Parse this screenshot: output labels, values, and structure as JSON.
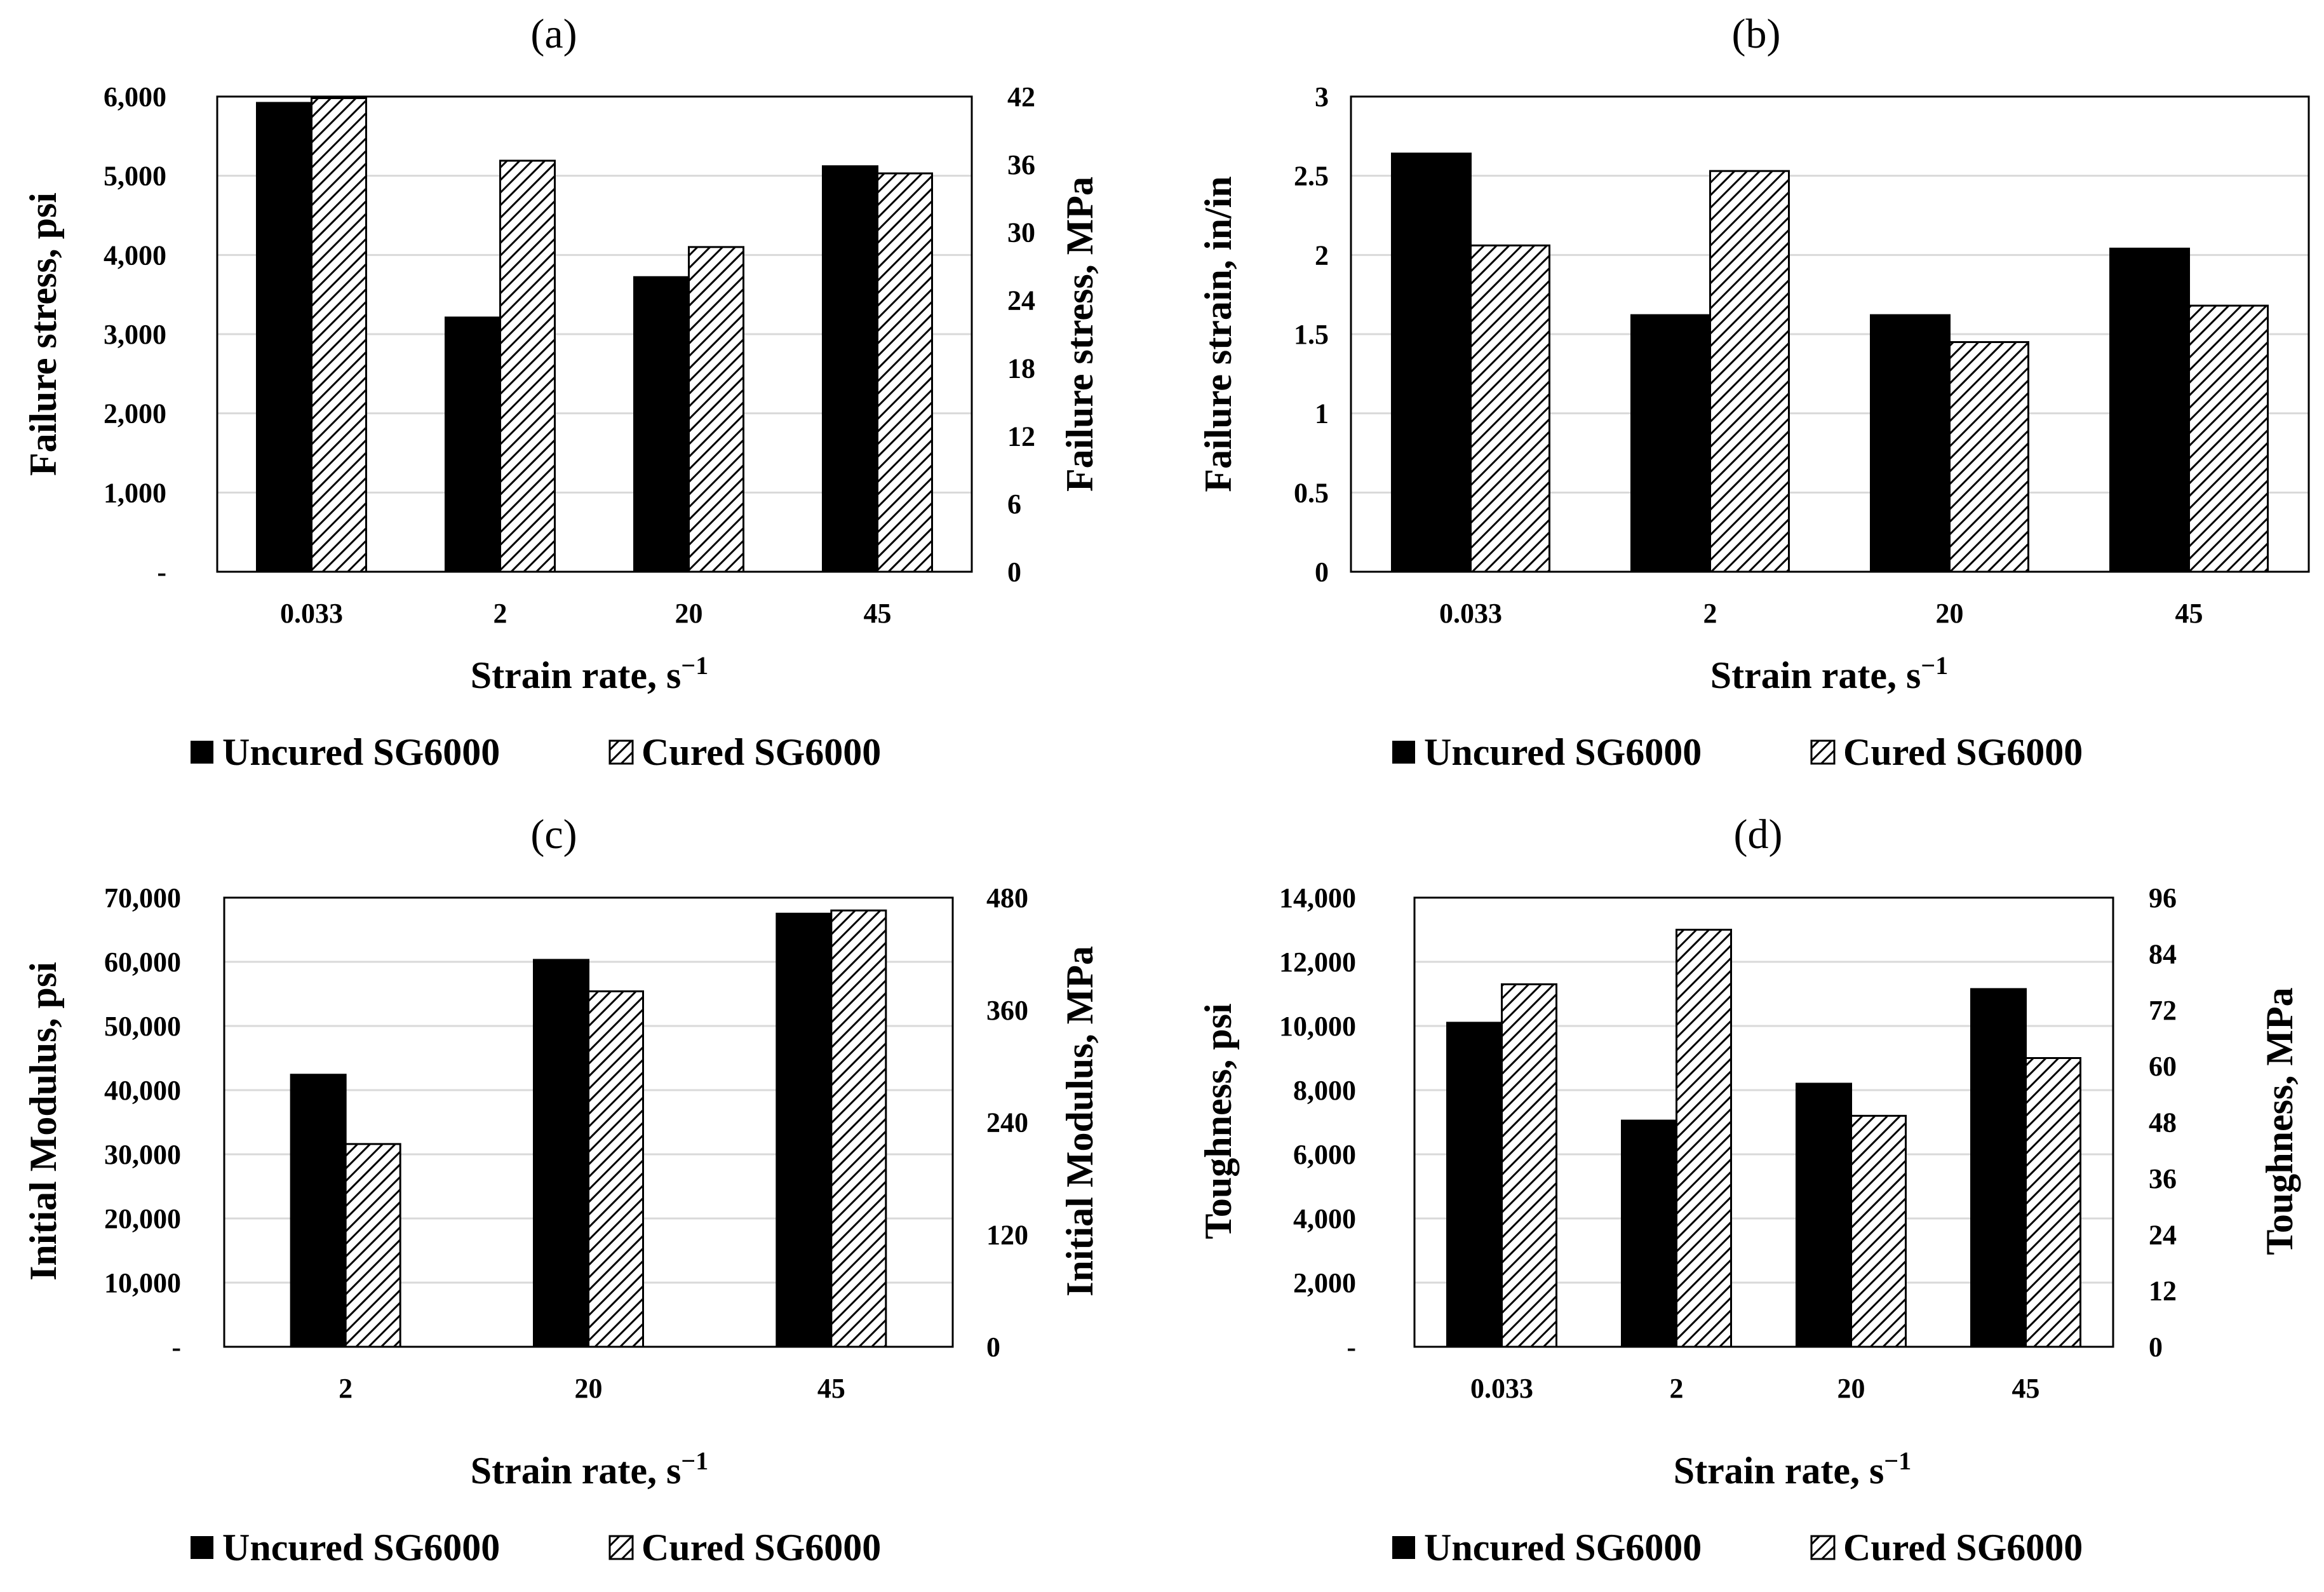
{
  "legend": {
    "uncured": "Uncured SG6000",
    "cured": "Cured SG6000"
  },
  "chart_data": [
    {
      "id": "a",
      "type": "bar",
      "panel_label": "(a)",
      "categories": [
        "0.033",
        "2",
        "20",
        "45"
      ],
      "series": [
        {
          "name": "Uncured SG6000",
          "values": [
            5920,
            3210,
            3720,
            5120
          ]
        },
        {
          "name": "Cured SG6000",
          "values": [
            5980,
            5190,
            4100,
            5030
          ]
        }
      ],
      "xlabel_main": "Strain rate, s",
      "xlabel_sup": "−1",
      "ylabel": "Failure stress, psi",
      "ylim": [
        0,
        6000
      ],
      "yticks": [
        "-",
        "1,000",
        "2,000",
        "3,000",
        "4,000",
        "5,000",
        "6,000"
      ],
      "y2label": "Failure stress, MPa",
      "y2lim": [
        0,
        42
      ],
      "y2ticks": [
        "0",
        "6",
        "12",
        "18",
        "24",
        "30",
        "36",
        "42"
      ],
      "grid": true
    },
    {
      "id": "b",
      "type": "bar",
      "panel_label": "(b)",
      "categories": [
        "0.033",
        "2",
        "20",
        "45"
      ],
      "series": [
        {
          "name": "Uncured SG6000",
          "values": [
            2.64,
            1.62,
            1.62,
            2.04
          ]
        },
        {
          "name": "Cured SG6000",
          "values": [
            2.06,
            2.53,
            1.45,
            1.68
          ]
        }
      ],
      "xlabel_main": "Strain rate, s",
      "xlabel_sup": "−1",
      "ylabel": "Failure strain, in/in",
      "ylim": [
        0,
        3
      ],
      "yticks": [
        "0",
        "0.5",
        "1",
        "1.5",
        "2",
        "2.5",
        "3"
      ],
      "grid": true
    },
    {
      "id": "c",
      "type": "bar",
      "panel_label": "(c)",
      "categories": [
        "2",
        "20",
        "45"
      ],
      "series": [
        {
          "name": "Uncured SG6000",
          "values": [
            42400,
            60300,
            67500
          ]
        },
        {
          "name": "Cured SG6000",
          "values": [
            31600,
            55400,
            68000
          ]
        }
      ],
      "xlabel_main": "Strain rate, s",
      "xlabel_sup": "−1",
      "ylabel": "Initial Modulus, psi",
      "ylim": [
        0,
        70000
      ],
      "yticks": [
        "-",
        "10,000",
        "20,000",
        "30,000",
        "40,000",
        "50,000",
        "60,000",
        "70,000"
      ],
      "y2label": "Initial Modulus, MPa",
      "y2lim": [
        0,
        480
      ],
      "y2ticks": [
        "0",
        "120",
        "240",
        "360",
        "480"
      ],
      "grid": true
    },
    {
      "id": "d",
      "type": "bar",
      "panel_label": "(d)",
      "categories": [
        "0.033",
        "2",
        "20",
        "45"
      ],
      "series": [
        {
          "name": "Uncured SG6000",
          "values": [
            10100,
            7050,
            8200,
            11150
          ]
        },
        {
          "name": "Cured SG6000",
          "values": [
            11300,
            13000,
            7200,
            9000
          ]
        }
      ],
      "xlabel_main": "Strain rate, s",
      "xlabel_sup": "−1",
      "ylabel": "Toughness,  psi",
      "ylim": [
        0,
        14000
      ],
      "yticks": [
        "-",
        "2,000",
        "4,000",
        "6,000",
        "8,000",
        "10,000",
        "12,000",
        "14,000"
      ],
      "y2label": "Toughness,  MPa",
      "y2lim": [
        0,
        96
      ],
      "y2ticks": [
        "0",
        "12",
        "24",
        "36",
        "48",
        "60",
        "72",
        "84",
        "96"
      ],
      "grid": true
    }
  ]
}
